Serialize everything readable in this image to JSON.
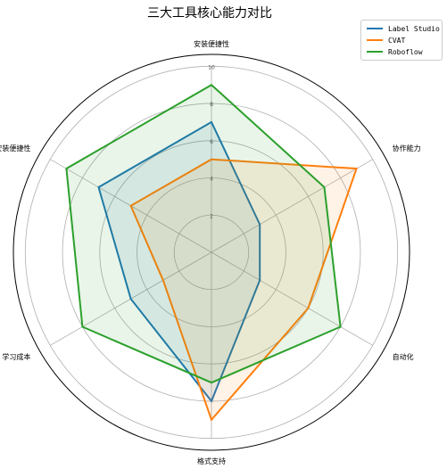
{
  "chart_data": {
    "type": "radar",
    "title": "三大工具核心能力对比",
    "categories": [
      "安装便捷性",
      "协作能力",
      "自动化",
      "格式支持",
      "学习成本",
      "安装便捷性"
    ],
    "rmax": 10,
    "radial_ticks": [
      2,
      4,
      6,
      8,
      10
    ],
    "grid": true,
    "legend_position": "top-right",
    "series": [
      {
        "name": "Label Studio",
        "color": "#1f77b4",
        "values": [
          7,
          3,
          3,
          8,
          5,
          7
        ]
      },
      {
        "name": "CVAT",
        "color": "#ff7f0e",
        "values": [
          5,
          9,
          6,
          9,
          3,
          5
        ]
      },
      {
        "name": "Roboflow",
        "color": "#2ca02c",
        "values": [
          9,
          7,
          8,
          7,
          8,
          9
        ]
      }
    ]
  }
}
